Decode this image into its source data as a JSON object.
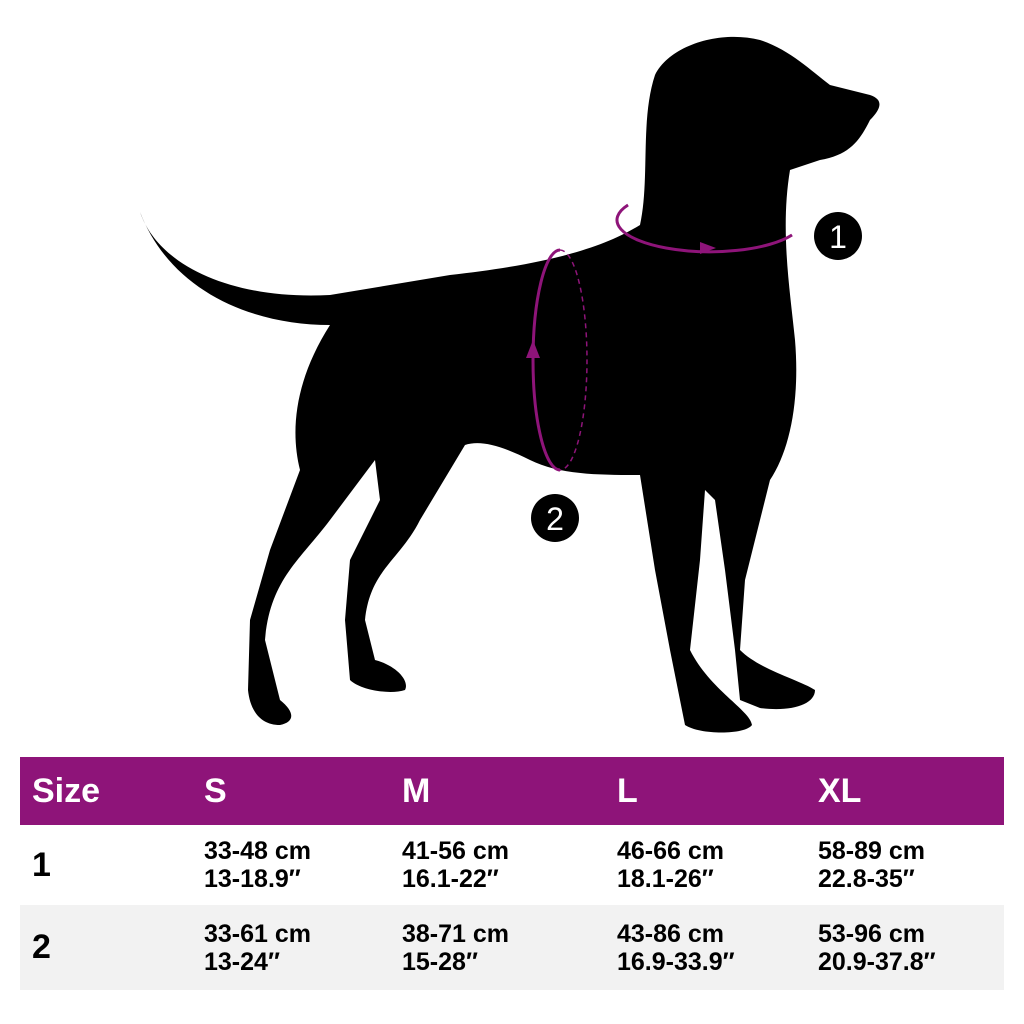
{
  "colors": {
    "accent": "#8e1479",
    "silhouette": "#000000",
    "row_alt": "#f2f2f2"
  },
  "diagram": {
    "markers": [
      "1",
      "2"
    ],
    "marker_1_meaning": "",
    "icons": [
      "dog-silhouette",
      "neck-measure-loop",
      "chest-measure-loop"
    ]
  },
  "table": {
    "headers": [
      "Size",
      "S",
      "M",
      "L",
      "XL"
    ],
    "rows": [
      {
        "label": "1",
        "values": [
          [
            "33-48 cm",
            "13-18.9″"
          ],
          [
            "41-56 cm",
            "16.1-22″"
          ],
          [
            "46-66 cm",
            "18.1-26″"
          ],
          [
            "58-89 cm",
            "22.8-35″"
          ]
        ]
      },
      {
        "label": "2",
        "values": [
          [
            "33-61 cm",
            "13-24″"
          ],
          [
            "38-71 cm",
            "15-28″"
          ],
          [
            "43-86 cm",
            "16.9-33.9″"
          ],
          [
            "53-96 cm",
            "20.9-37.8″"
          ]
        ]
      }
    ]
  }
}
